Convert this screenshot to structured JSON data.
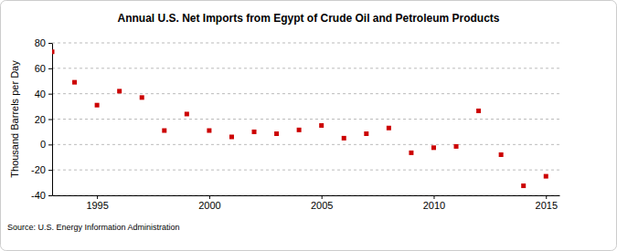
{
  "chart_data": {
    "type": "scatter",
    "title": "Annual U.S. Net Imports from Egypt of Crude Oil and Petroleum Products",
    "y_label": "Thousand Barrels per Day",
    "source": "Source: U.S. Energy Information Administration",
    "x": [
      1993,
      1994,
      1995,
      1996,
      1997,
      1998,
      1999,
      2000,
      2001,
      2002,
      2003,
      2004,
      2005,
      2006,
      2007,
      2008,
      2009,
      2010,
      2011,
      2012,
      2013,
      2014,
      2015
    ],
    "values": [
      73,
      49,
      31,
      42,
      37,
      11,
      24,
      11,
      6,
      10,
      8.5,
      11.5,
      15,
      5,
      8.5,
      13,
      -6.5,
      -2.5,
      -1.5,
      26.5,
      -8,
      -32.5,
      -25
    ],
    "color": "#cc0000",
    "marker": "square",
    "xlim": [
      1993,
      2015.6
    ],
    "xticks": [
      1995,
      2000,
      2005,
      2010,
      2015
    ],
    "ylim": [
      -40,
      80
    ],
    "yticks": [
      -40,
      -20,
      0,
      20,
      40,
      60,
      80
    ],
    "grid": true
  }
}
